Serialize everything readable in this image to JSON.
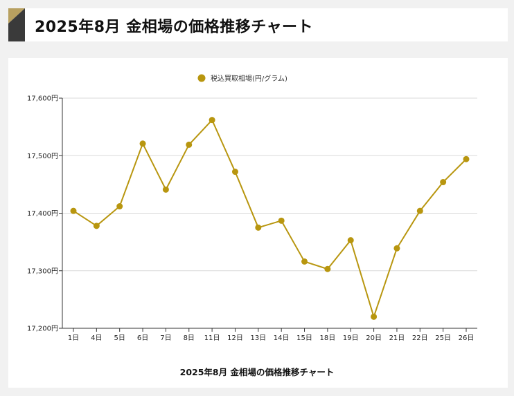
{
  "header": {
    "title": "2025年8月 金相場の価格推移チャート"
  },
  "colors": {
    "series": "#b8960f",
    "grid": "#d9d9d9",
    "axis": "#333333",
    "logo_gold": "#b8a060",
    "logo_dark": "#3a3a3a"
  },
  "chart_data": {
    "type": "line",
    "categories": [
      "1日",
      "4日",
      "5日",
      "6日",
      "7日",
      "8日",
      "11日",
      "12日",
      "13日",
      "14日",
      "15日",
      "18日",
      "19日",
      "20日",
      "21日",
      "22日",
      "25日",
      "26日"
    ],
    "series": [
      {
        "name": "税込買取相場(円/グラム)",
        "values": [
          17404,
          17378,
          17412,
          17521,
          17441,
          17519,
          17562,
          17472,
          17375,
          17387,
          17316,
          17303,
          17353,
          17220,
          17339,
          17404,
          17454,
          17494
        ]
      }
    ],
    "ylim": [
      17200,
      17600
    ],
    "yticks": [
      17200,
      17300,
      17400,
      17500,
      17600
    ],
    "ytick_labels": [
      "17,200円",
      "17,300円",
      "17,400円",
      "17,500円",
      "17,600円"
    ],
    "xlabel": "2025年8月 金相場の価格推移チャート",
    "grid": true,
    "legend_position": "top-center"
  }
}
